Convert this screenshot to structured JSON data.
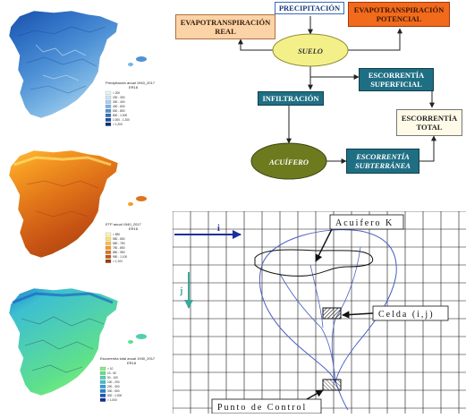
{
  "maps": [
    {
      "id": "precip",
      "legend_title": "Precipitación anual 1940_2017",
      "legend_source": "ER18",
      "legend_items": [
        "< 200",
        "200 - 300",
        "300 - 400",
        "400 - 600",
        "600 - 800",
        "800 - 1.000",
        "1.000 - 1.200",
        "> 1.200"
      ],
      "colors": [
        "#e8f4fb",
        "#cfe6f5",
        "#a9d1ee",
        "#7bb5e4",
        "#4f92d6",
        "#2e6fc4",
        "#1a4fa8",
        "#0b2f80"
      ]
    },
    {
      "id": "etp",
      "legend_title": "ETP anual 1940_2017",
      "legend_source": "ER18",
      "legend_items": [
        "< 550",
        "550 - 650",
        "650 - 750",
        "750 - 850",
        "850 - 950",
        "950 - 1.100",
        "> 1.100"
      ],
      "colors": [
        "#fff6b0",
        "#ffe270",
        "#ffc03d",
        "#f59a22",
        "#e07419",
        "#c85414",
        "#9c3a0e"
      ]
    },
    {
      "id": "escorrentia",
      "legend_title": "Escorrentía total anual 1940_2017",
      "legend_source": "ER18",
      "legend_items": [
        "< 10",
        "10 - 50",
        "50 - 100",
        "100 - 200",
        "200 - 300",
        "300 - 500",
        "500 - 1.000",
        "> 1.000"
      ],
      "colors": [
        "#7ff07a",
        "#5fe08a",
        "#4fd0b0",
        "#3dbfd0",
        "#2aa0d8",
        "#1f7fd0",
        "#1558c0",
        "#0a2f90"
      ]
    }
  ],
  "flow": {
    "precipitacion": "PRECIPITACIÓN",
    "etp_line1": "EVAPOTRANSPIRACIÓN",
    "etp_line2": "POTENCIAL",
    "etr_line1": "EVAPOTRANSPIRACIÓN",
    "etr_line2": "REAL",
    "suelo": "SUELO",
    "infiltracion": "INFILTRACIÓN",
    "esc_sup_line1": "ESCORRENTÍA",
    "esc_sup_line2": "SUPERFICIAL",
    "esc_total_line1": "ESCORRENTÍA",
    "esc_total_line2": "TOTAL",
    "acuifero": "ACUÍFERO",
    "esc_sub_line1": "ESCORRENTÍA",
    "esc_sub_line2": "SUBTERRÁNEA",
    "colors": {
      "precipitacion_bg": "#ffffff",
      "etp_bg": "#f26a1b",
      "etr_bg": "#fbd3a6",
      "suelo_bg": "#f3f08a",
      "acuifero_bg": "#6e7a1e",
      "teal": "#1f6f84",
      "total_bg": "#fffbe8"
    }
  },
  "grid": {
    "acuifero_label": "Acuifero K",
    "celda_label": "Celda (i,j)",
    "punto_label": "Punto de Control",
    "i_label": "i",
    "j_label": "j",
    "i_arrow_color": "#1a2f9a",
    "j_arrow_color": "#3aa89a",
    "line_color": "#4a5fc4"
  }
}
